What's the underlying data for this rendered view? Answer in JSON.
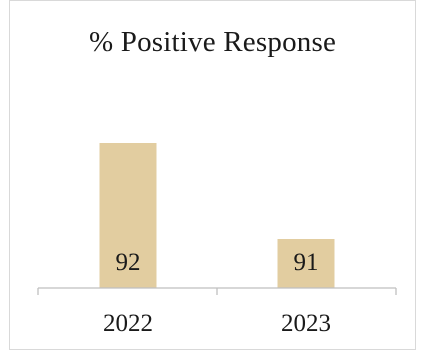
{
  "chart_data": {
    "type": "bar",
    "title": "% Positive Response",
    "categories": [
      "2022",
      "2023"
    ],
    "values": [
      92,
      91
    ],
    "data_labels": [
      "92",
      "91"
    ],
    "bar_value_scale_note": "",
    "xlabel": "",
    "ylabel": "",
    "y_axis_visible": false,
    "grid": false,
    "legend": "none",
    "colors": {
      "bar": "#e2cda0",
      "axis": "#bfbfbf",
      "frame": "#d9d9d9",
      "text": "#1a1a1a"
    }
  }
}
